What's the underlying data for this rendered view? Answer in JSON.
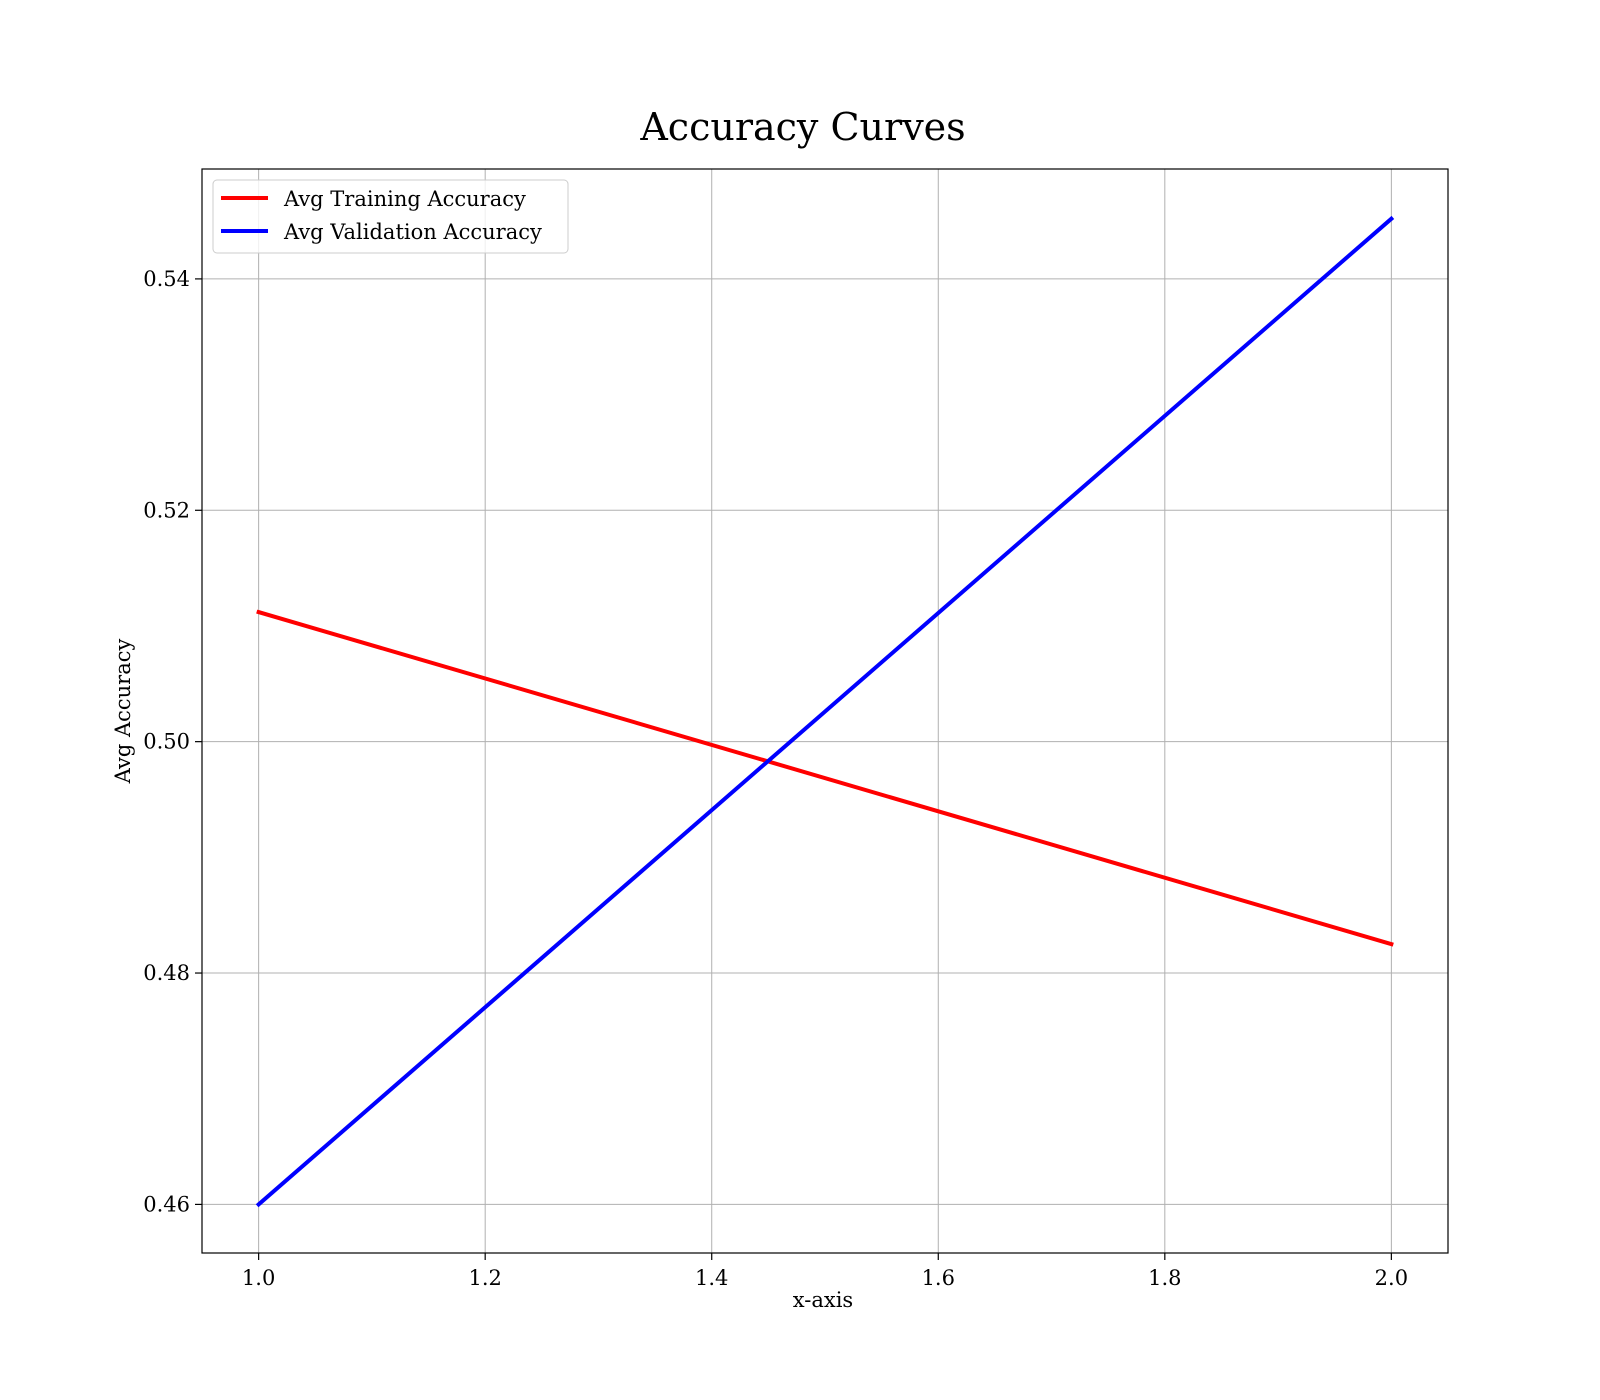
{
  "chart_data": {
    "type": "line",
    "title": "Accuracy Curves",
    "xlabel": "x-axis",
    "ylabel": "Avg Accuracy",
    "xlim": [
      0.95,
      2.05
    ],
    "ylim": [
      0.4558,
      0.5495
    ],
    "xticks": [
      1.0,
      1.2,
      1.4,
      1.6,
      1.8,
      2.0
    ],
    "xtick_labels": [
      "1.0",
      "1.2",
      "1.4",
      "1.6",
      "1.8",
      "2.0"
    ],
    "yticks": [
      0.46,
      0.48,
      0.5,
      0.52,
      0.54
    ],
    "ytick_labels": [
      "0.46",
      "0.48",
      "0.50",
      "0.52",
      "0.54"
    ],
    "grid": true,
    "legend_position": "top-left",
    "x": [
      1.0,
      2.0
    ],
    "series": [
      {
        "name": "Avg Training Accuracy",
        "color": "#ff0000",
        "values": [
          0.5112,
          0.4825
        ]
      },
      {
        "name": "Avg Validation Accuracy",
        "color": "#0000ff",
        "values": [
          0.46,
          0.5452
        ]
      }
    ]
  }
}
